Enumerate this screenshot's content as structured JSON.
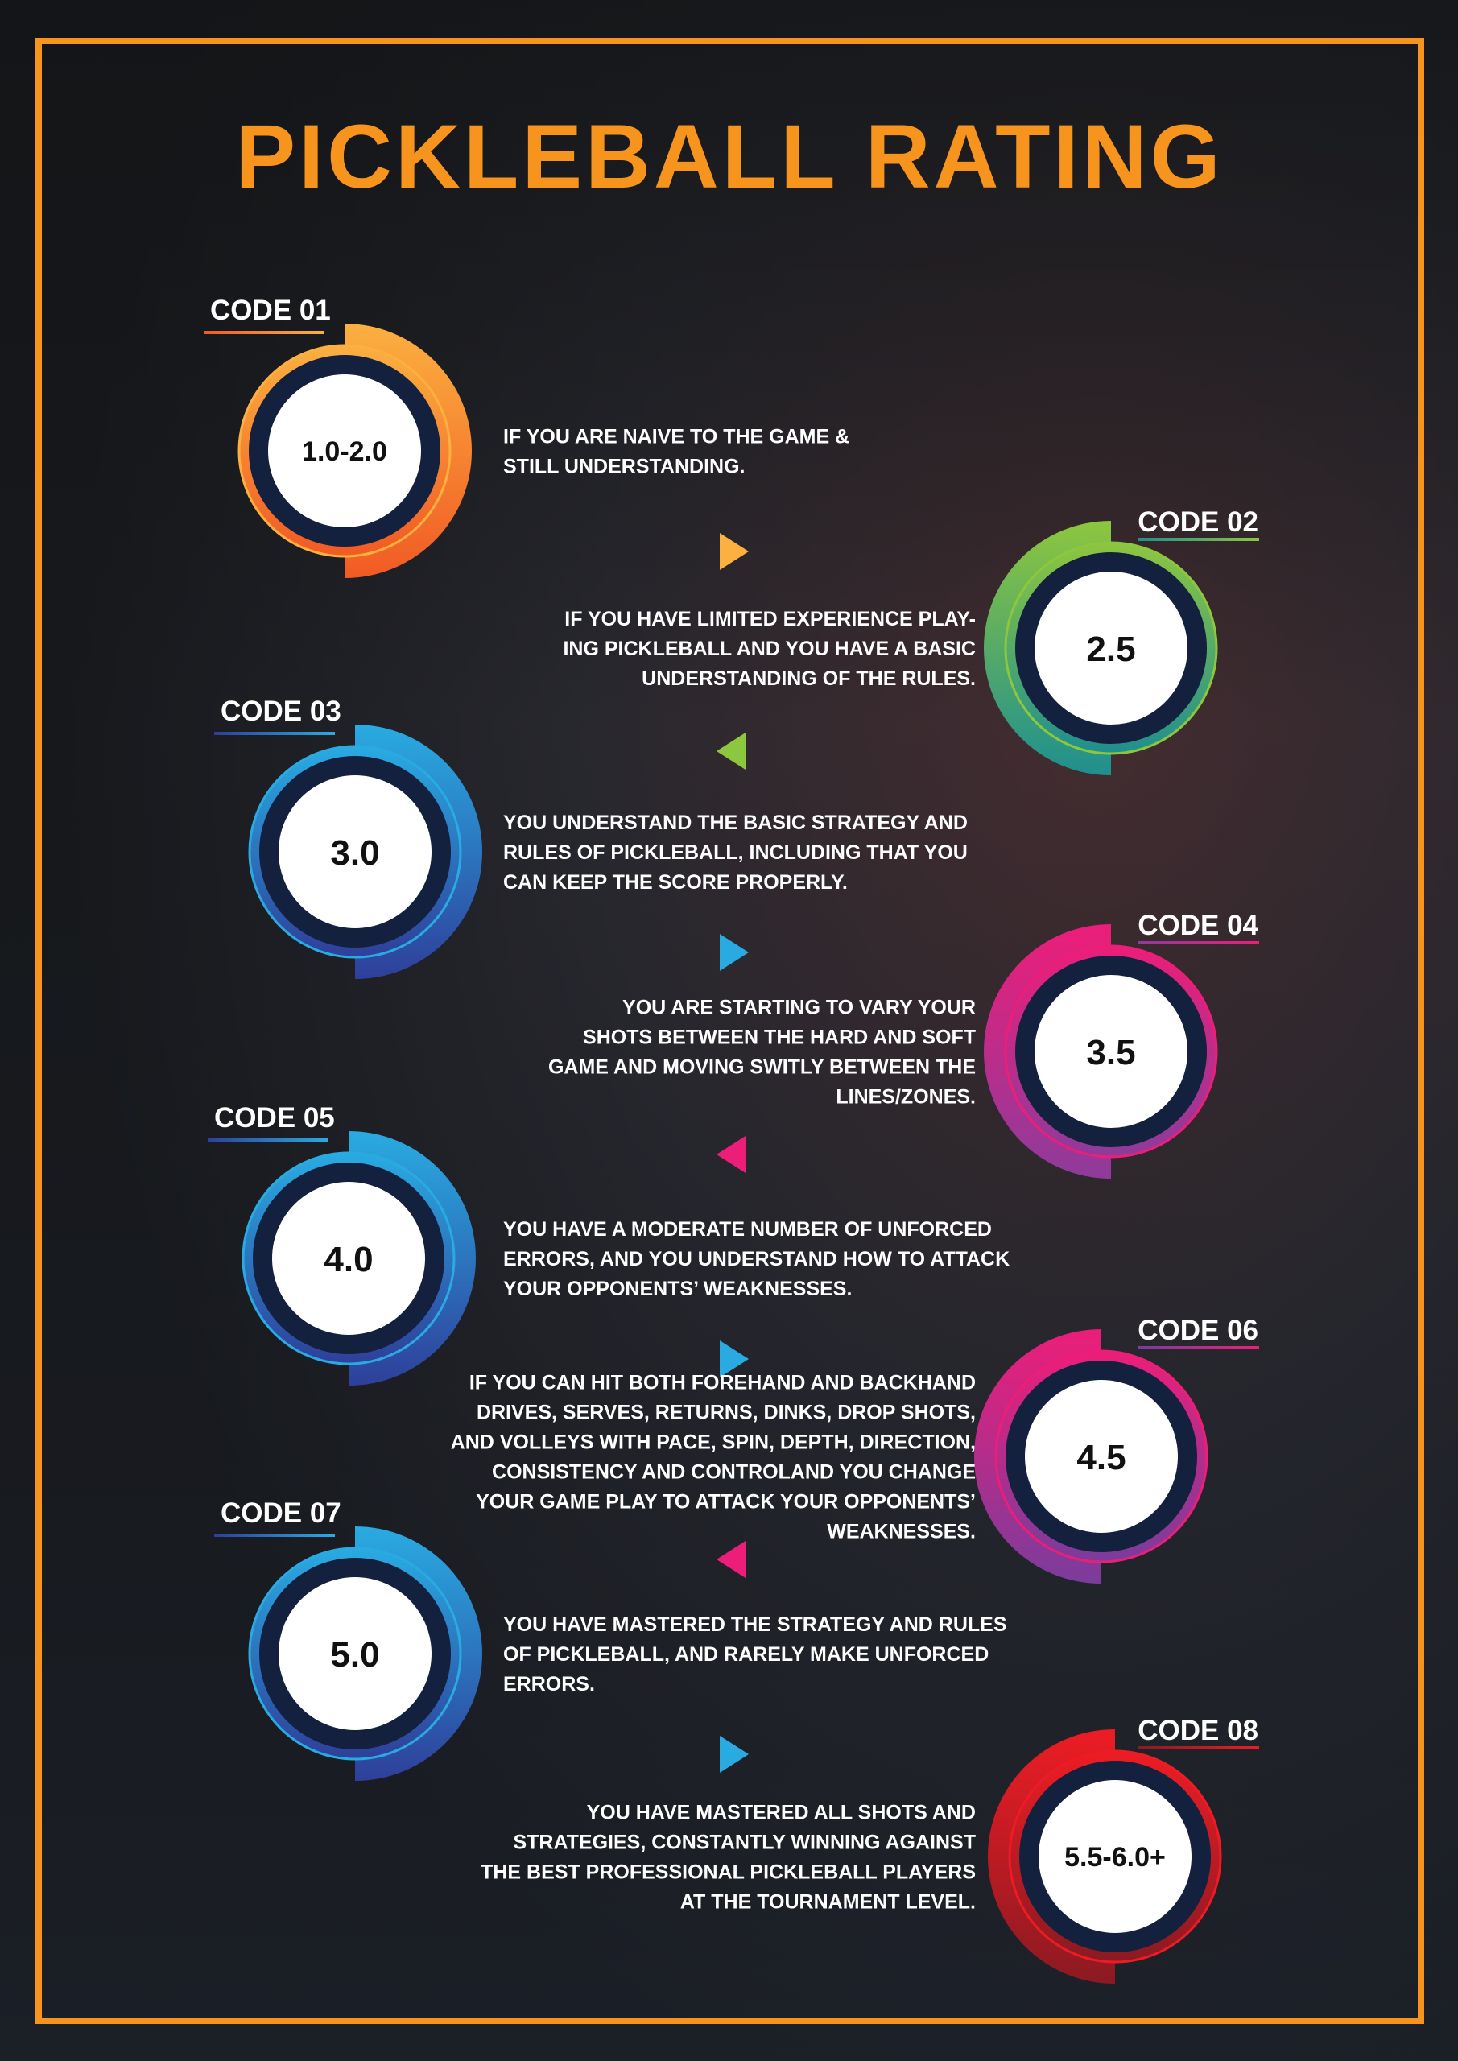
{
  "title": "PICKLEBALL RATING",
  "frame_color": "#f7941d",
  "codes": [
    {
      "code": "CODE 01",
      "rating": "1.0-2.0",
      "side": "left",
      "color1": "#fbb040",
      "color2": "#f15a24",
      "lines": [
        "IF YOU ARE NAIVE TO THE GAME &",
        "STILL UNDERSTANDING."
      ]
    },
    {
      "code": "CODE 02",
      "rating": "2.5",
      "side": "right",
      "color1": "#8dc63f",
      "color2": "#1f8f8f",
      "lines": [
        "IF YOU HAVE LIMITED EXPERIENCE PLAY-",
        "ING PICKLEBALL  AND YOU HAVE A BASIC",
        "UNDERSTANDING OF THE RULES."
      ]
    },
    {
      "code": "CODE 03",
      "rating": "3.0",
      "side": "left",
      "color1": "#29abe2",
      "color2": "#2e3f9a",
      "lines": [
        "YOU UNDERSTAND THE BASIC STRATEGY AND",
        "RULES OF PICKLEBALL, INCLUDING THAT YOU",
        "CAN KEEP THE SCORE PROPERLY."
      ]
    },
    {
      "code": "CODE 04",
      "rating": "3.5",
      "side": "right",
      "color1": "#ec1e79",
      "color2": "#8e3b9b",
      "lines": [
        "YOU ARE STARTING TO VARY YOUR",
        "SHOTS BETWEEN THE HARD AND SOFT",
        "GAME AND MOVING SWITLY BETWEEN THE",
        "LINES/ZONES."
      ]
    },
    {
      "code": "CODE 05",
      "rating": "4.0",
      "side": "left",
      "color1": "#29abe2",
      "color2": "#2e3f9a",
      "lines": [
        "YOU HAVE A MODERATE NUMBER OF UNFORCED",
        "ERRORS, AND YOU UNDERSTAND HOW TO ATTACK",
        "YOUR OPPONENTS’ WEAKNESSES."
      ]
    },
    {
      "code": "CODE 06",
      "rating": "4.5",
      "side": "right",
      "color1": "#ec1e79",
      "color2": "#7b3c9c",
      "lines": [
        "IF YOU CAN HIT BOTH FOREHAND AND BACKHAND",
        "DRIVES, SERVES, RETURNS, DINKS, DROP SHOTS,",
        "AND VOLLEYS WITH PACE, SPIN, DEPTH, DIRECTION,",
        "CONSISTENCY AND CONTROLAND YOU CHANGE",
        "YOUR GAME PLAY TO ATTACK YOUR OPPONENTS’",
        "WEAKNESSES."
      ]
    },
    {
      "code": "CODE 07",
      "rating": "5.0",
      "side": "left",
      "color1": "#29abe2",
      "color2": "#2e3f9a",
      "lines": [
        "YOU HAVE MASTERED THE STRATEGY AND RULES",
        "OF PICKLEBALL, AND RARELY MAKE UNFORCED",
        "ERRORS."
      ]
    },
    {
      "code": "CODE 08",
      "rating": "5.5-6.0+",
      "side": "right",
      "color1": "#ed1c24",
      "color2": "#8b1a22",
      "lines": [
        "YOU HAVE MASTERED ALL SHOTS AND",
        "STRATEGIES, CONSTANTLY WINNING AGAINST",
        "THE BEST PROFESSIONAL PICKLEBALL PLAYERS",
        "AT THE TOURNAMENT LEVEL."
      ]
    }
  ]
}
